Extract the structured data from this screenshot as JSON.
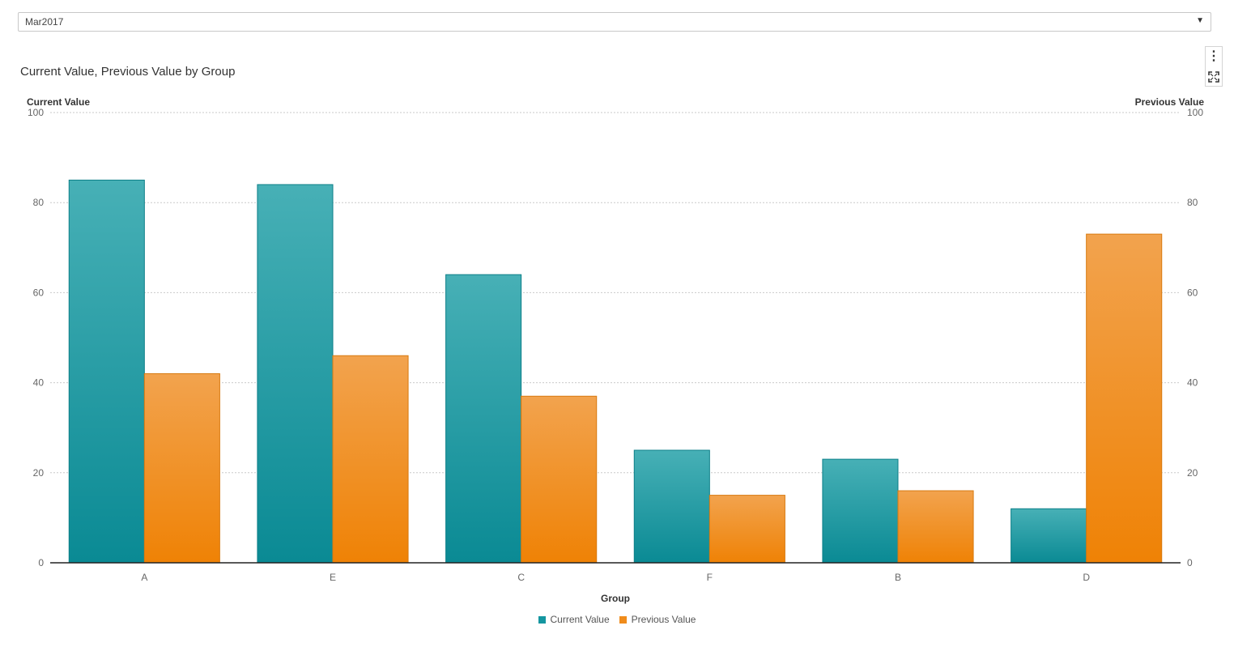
{
  "filter": {
    "selected": "Mar2017"
  },
  "toolbar": {
    "more_icon": "vertical-ellipsis-icon",
    "maximize_icon": "maximize-icon"
  },
  "colors": {
    "current": "#1496a0",
    "current_light": "#47b0b6",
    "current_dark": "#0a8a94",
    "previous": "#f08c1c",
    "previous_light": "#f2a34e",
    "previous_dark": "#ef8205",
    "grid": "#c9c9c9",
    "axis": "#222222"
  },
  "chart_data": {
    "type": "bar",
    "title": "Current Value, Previous Value by Group",
    "xlabel": "Group",
    "ylabel_left": "Current Value",
    "ylabel_right": "Previous Value",
    "categories": [
      "A",
      "E",
      "C",
      "F",
      "B",
      "D"
    ],
    "series": [
      {
        "name": "Current Value",
        "axis": "left",
        "values": [
          85,
          84,
          64,
          25,
          23,
          12
        ]
      },
      {
        "name": "Previous Value",
        "axis": "right",
        "values": [
          42,
          46,
          37,
          15,
          16,
          73
        ]
      }
    ],
    "ylim_left": [
      0,
      100
    ],
    "ylim_right": [
      0,
      100
    ],
    "yticks_left": [
      "0",
      "20",
      "40",
      "60",
      "80",
      "100"
    ],
    "yticks_right": [
      "0",
      "20",
      "40",
      "60",
      "80",
      "100"
    ],
    "grid": true,
    "legend_position": "bottom-center"
  }
}
